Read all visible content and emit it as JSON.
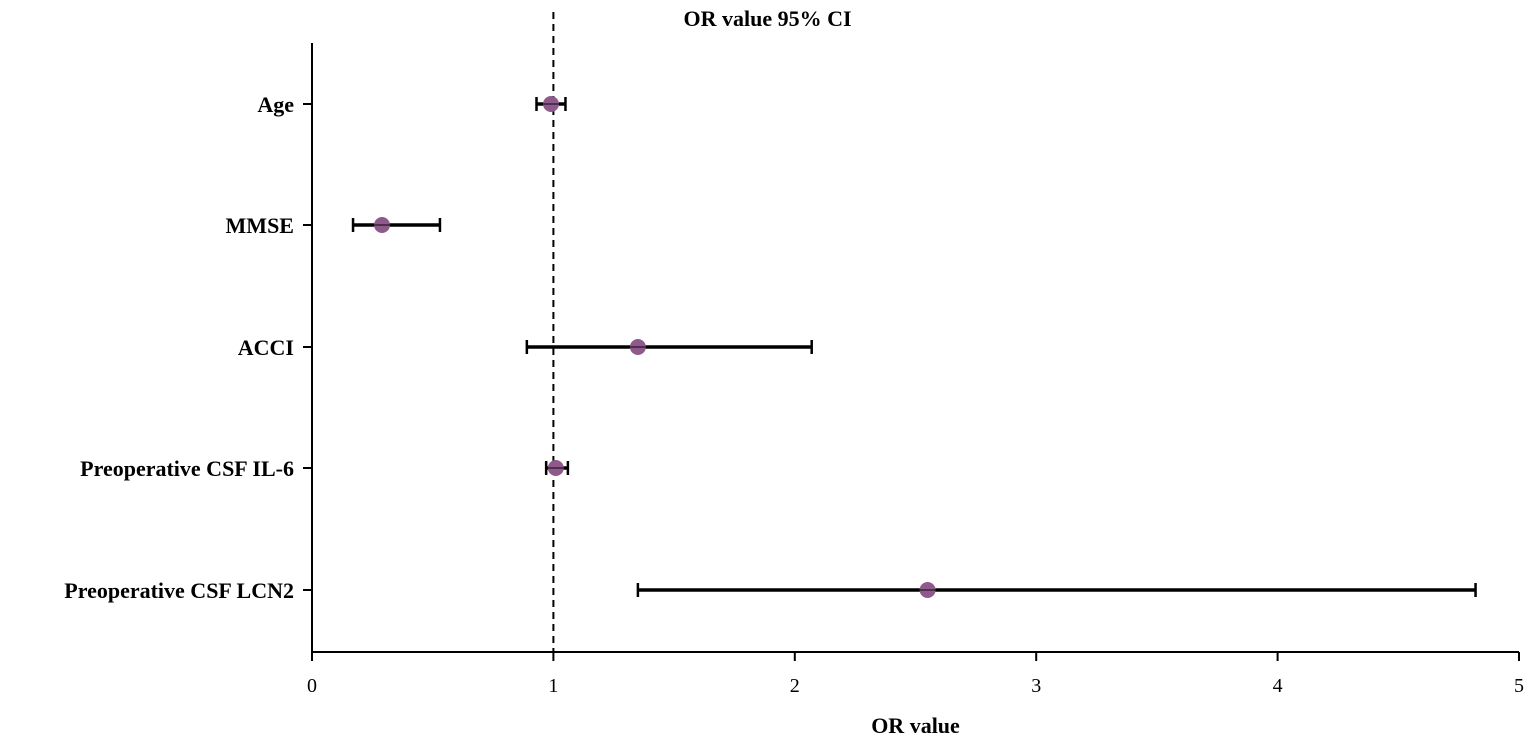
{
  "chart_data": {
    "type": "forest",
    "title": "OR value 95% CI",
    "xlabel": "OR value",
    "ylabel": "",
    "xlim": [
      0,
      5
    ],
    "xticks": [
      0,
      1,
      2,
      3,
      4,
      5
    ],
    "reference_line": 1,
    "grid": false,
    "legend": null,
    "point_color": "#8E5A8C",
    "categories": [
      "Age",
      "MMSE",
      "ACCI",
      "Preoperative CSF IL-6",
      "Preoperative CSF  LCN2"
    ],
    "series": [
      {
        "name": "OR",
        "values": [
          0.99,
          0.29,
          1.35,
          1.01,
          2.55
        ]
      },
      {
        "name": "CI lower",
        "values": [
          0.93,
          0.17,
          0.89,
          0.97,
          1.35
        ]
      },
      {
        "name": "CI upper",
        "values": [
          1.05,
          0.53,
          2.07,
          1.06,
          4.82
        ]
      }
    ]
  }
}
